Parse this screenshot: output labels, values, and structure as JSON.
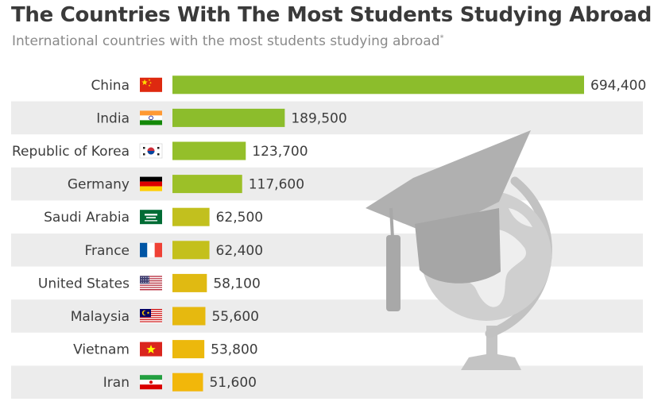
{
  "header": {
    "title": "The Countries With The Most Students Studying Abroad",
    "subtitle": "International countries with the most students studying abroad",
    "subtitle_mark": "*"
  },
  "chart_data": {
    "type": "bar",
    "orientation": "horizontal",
    "categories": [
      "China",
      "India",
      "Republic of Korea",
      "Germany",
      "Saudi Arabia",
      "France",
      "United States",
      "Malaysia",
      "Vietnam",
      "Iran"
    ],
    "values": [
      694400,
      189500,
      123700,
      117600,
      62500,
      62400,
      58100,
      55600,
      53800,
      51600
    ],
    "value_labels": [
      "694,400",
      "189,500",
      "123,700",
      "117,600",
      "62,500",
      "62,400",
      "58,100",
      "55,600",
      "53,800",
      "51,600"
    ],
    "flags": [
      "china-flag-icon",
      "india-flag-icon",
      "south-korea-flag-icon",
      "germany-flag-icon",
      "saudi-arabia-flag-icon",
      "france-flag-icon",
      "united-states-flag-icon",
      "malaysia-flag-icon",
      "vietnam-flag-icon",
      "iran-flag-icon"
    ],
    "bar_colors": [
      "#8cbd2c",
      "#8cbd2c",
      "#94bf2a",
      "#9cc028",
      "#c2c01e",
      "#c4c01c",
      "#e0ba12",
      "#e6b90f",
      "#ecb80c",
      "#f2b70a"
    ],
    "grid": false,
    "legend": "none"
  },
  "colors": {
    "row_stripe": "#ececec",
    "illustration": "#b3b3b3",
    "illustration_light": "#dcdcdc"
  }
}
